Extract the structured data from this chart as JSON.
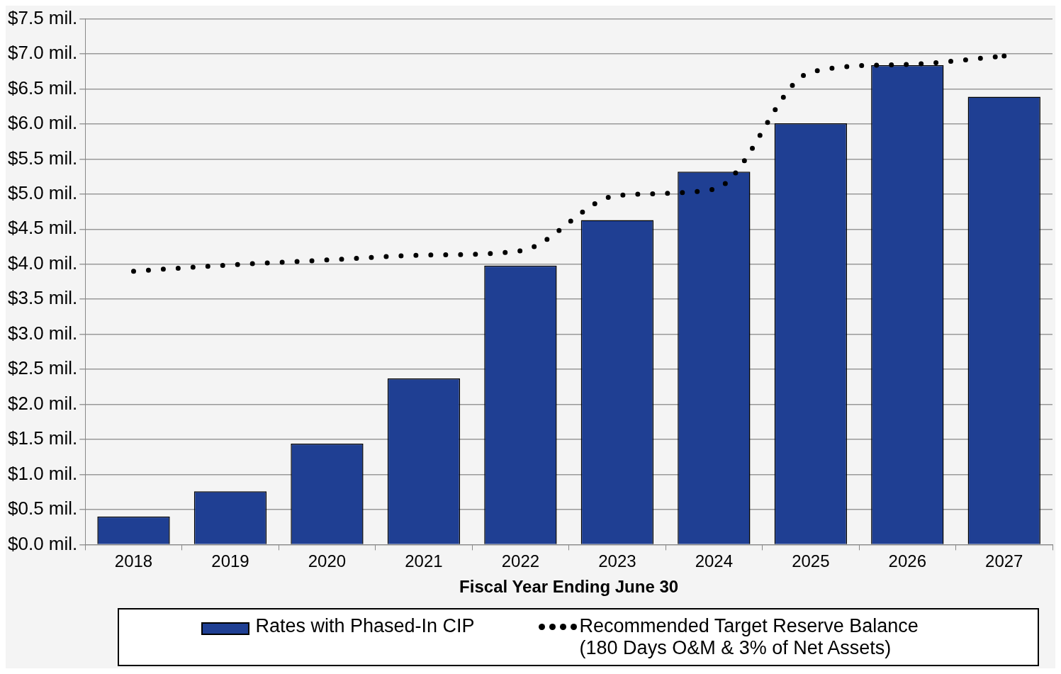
{
  "chart_data": {
    "type": "bar",
    "xlabel": "Fiscal Year Ending June 30",
    "categories": [
      "2018",
      "2019",
      "2020",
      "2021",
      "2022",
      "2023",
      "2024",
      "2025",
      "2026",
      "2027"
    ],
    "series": [
      {
        "name": "Rates with Phased-In CIP",
        "color": "#1f3f93",
        "values": [
          0.4,
          0.76,
          1.44,
          2.37,
          3.98,
          4.63,
          5.32,
          6.01,
          6.84,
          6.39
        ]
      },
      {
        "name": "Recommended Target Reserve Balance (180 Days O&M & 3% of Net Assets)",
        "type": "line",
        "color": "#000000",
        "line_style": "dotted",
        "values": [
          3.9,
          3.99,
          4.06,
          4.13,
          4.19,
          4.98,
          5.07,
          6.74,
          6.85,
          6.97
        ]
      }
    ],
    "ylim": [
      0,
      7.5
    ],
    "yticks": [
      {
        "value": 0,
        "label": "$0.0 mil."
      },
      {
        "value": 0.5,
        "label": "$0.5 mil."
      },
      {
        "value": 1,
        "label": "$1.0 mil."
      },
      {
        "value": 1.5,
        "label": "$1.5 mil."
      },
      {
        "value": 2,
        "label": "$2.0 mil."
      },
      {
        "value": 2.5,
        "label": "$2.5 mil."
      },
      {
        "value": 3,
        "label": "$3.0 mil."
      },
      {
        "value": 3.5,
        "label": "$3.5 mil."
      },
      {
        "value": 4,
        "label": "$4.0 mil."
      },
      {
        "value": 4.5,
        "label": "$4.5 mil."
      },
      {
        "value": 5,
        "label": "$5.0 mil."
      },
      {
        "value": 5.5,
        "label": "$5.5 mil."
      },
      {
        "value": 6,
        "label": "$6.0 mil."
      },
      {
        "value": 6.5,
        "label": "$6.5 mil."
      },
      {
        "value": 7,
        "label": "$7.0 mil."
      },
      {
        "value": 7.5,
        "label": "$7.5 mil."
      }
    ],
    "grid": "y",
    "legend": "bottom"
  }
}
